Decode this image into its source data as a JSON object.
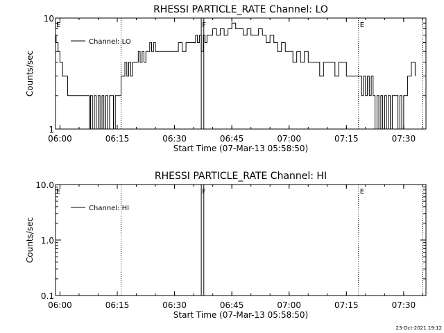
{
  "footer": {
    "timestamp": "23-Oct-2021 19:12"
  },
  "chart_data": [
    {
      "type": "line",
      "title": "RHESSI PARTICLE_RATE Channel: LO",
      "xlabel": "Start Time (07-Mar-13 05:58:50)",
      "ylabel": "Counts/sec",
      "yscale": "log",
      "xlim": [
        "05:58:50",
        "07:35:50"
      ],
      "ylim": [
        1,
        10
      ],
      "xticks": [
        "06:00",
        "06:15",
        "06:30",
        "06:45",
        "07:00",
        "07:15",
        "07:30"
      ],
      "yticks": [
        "1",
        "10"
      ],
      "legend": {
        "placement": "top-left",
        "entries": [
          "Channel: LO"
        ]
      },
      "event_lines": [
        {
          "time": "06:16:00",
          "style": "dotted",
          "label": ""
        },
        {
          "time": "06:37:00",
          "style": "solid",
          "label": "F"
        },
        {
          "time": "06:37:40",
          "style": "solid",
          "label": ""
        },
        {
          "time": "07:18:10",
          "style": "dotted",
          "label": "E"
        },
        {
          "time": "07:35:00",
          "style": "dotted",
          "label": ""
        }
      ],
      "start_label": "E",
      "series": [
        {
          "name": "Channel: LO",
          "x": [
            "05:58:50",
            "05:59:00",
            "05:59:30",
            "06:00:00",
            "06:00:40",
            "06:01:20",
            "06:02:00",
            "06:03:00",
            "06:04:00",
            "06:05:00",
            "06:06:00",
            "06:07:00",
            "06:07:40",
            "06:08:00",
            "06:08:30",
            "06:09:00",
            "06:09:30",
            "06:10:00",
            "06:10:30",
            "06:11:00",
            "06:11:30",
            "06:12:00",
            "06:12:30",
            "06:13:00",
            "06:13:30",
            "06:14:00",
            "06:14:30",
            "06:15:00",
            "06:15:30",
            "06:16:00",
            "06:16:30",
            "06:17:00",
            "06:17:30",
            "06:18:00",
            "06:18:30",
            "06:19:00",
            "06:19:30",
            "06:20:00",
            "06:20:30",
            "06:21:00",
            "06:21:30",
            "06:22:00",
            "06:22:30",
            "06:23:00",
            "06:23:30",
            "06:24:00",
            "06:24:30",
            "06:25:00",
            "06:26:00",
            "06:27:00",
            "06:28:00",
            "06:29:00",
            "06:30:00",
            "06:31:00",
            "06:32:00",
            "06:33:00",
            "06:34:00",
            "06:35:00",
            "06:35:30",
            "06:36:00",
            "06:36:30",
            "06:37:00",
            "06:37:30",
            "06:38:00",
            "06:38:30",
            "06:39:00",
            "06:40:00",
            "06:41:00",
            "06:42:00",
            "06:43:00",
            "06:44:00",
            "06:45:00",
            "06:46:00",
            "06:47:00",
            "06:48:00",
            "06:49:00",
            "06:50:00",
            "06:51:00",
            "06:52:00",
            "06:53:00",
            "06:54:00",
            "06:55:00",
            "06:56:00",
            "06:57:00",
            "06:58:00",
            "06:59:00",
            "07:00:00",
            "07:01:00",
            "07:02:00",
            "07:03:00",
            "07:04:00",
            "07:05:00",
            "07:06:00",
            "07:07:00",
            "07:08:00",
            "07:09:00",
            "07:10:00",
            "07:11:00",
            "07:12:00",
            "07:13:00",
            "07:14:00",
            "07:15:00",
            "07:16:00",
            "07:17:00",
            "07:18:00",
            "07:18:30",
            "07:19:00",
            "07:19:30",
            "07:20:00",
            "07:20:30",
            "07:21:00",
            "07:21:30",
            "07:22:00",
            "07:22:30",
            "07:23:00",
            "07:23:30",
            "07:24:00",
            "07:24:30",
            "07:25:00",
            "07:25:30",
            "07:26:00",
            "07:26:30",
            "07:27:00",
            "07:27:30",
            "07:28:00",
            "07:28:30",
            "07:29:00",
            "07:29:30",
            "07:30:00",
            "07:30:30",
            "07:31:00",
            "07:31:30",
            "07:32:00",
            "07:32:30",
            "07:33:00"
          ],
          "values": [
            7,
            6,
            5,
            4,
            3,
            3,
            2,
            2,
            2,
            2,
            2,
            2,
            1,
            2,
            1,
            2,
            1,
            2,
            1,
            2,
            1,
            2,
            1,
            2,
            2,
            1,
            2,
            2,
            2,
            3,
            3,
            4,
            3,
            4,
            3,
            4,
            4,
            4,
            5,
            4,
            5,
            4,
            5,
            5,
            6,
            5,
            6,
            5,
            5,
            5,
            5,
            5,
            5,
            6,
            5,
            6,
            6,
            6,
            7,
            6,
            7,
            5,
            7,
            6,
            7,
            7,
            8,
            7,
            8,
            7,
            8,
            9,
            8,
            8,
            7,
            8,
            7,
            7,
            8,
            7,
            6,
            7,
            6,
            5,
            6,
            5,
            5,
            4,
            5,
            4,
            5,
            4,
            4,
            4,
            3,
            4,
            4,
            4,
            3,
            4,
            4,
            3,
            3,
            3,
            3,
            3,
            2,
            3,
            2,
            3,
            2,
            3,
            2,
            1,
            2,
            1,
            2,
            1,
            2,
            1,
            2,
            1,
            2,
            2,
            2,
            1,
            2,
            1,
            2,
            2,
            3,
            3,
            4,
            4,
            3
          ]
        }
      ]
    },
    {
      "type": "line",
      "title": "RHESSI PARTICLE_RATE Channel: HI",
      "xlabel": "Start Time (07-Mar-13 05:58:50)",
      "ylabel": "Counts/sec",
      "yscale": "log",
      "xlim": [
        "05:58:50",
        "07:35:50"
      ],
      "ylim": [
        0.1,
        10
      ],
      "xticks": [
        "06:00",
        "06:15",
        "06:30",
        "06:45",
        "07:00",
        "07:15",
        "07:30"
      ],
      "yticks": [
        "0.1",
        "1.0",
        "10.0"
      ],
      "legend": {
        "placement": "top-left",
        "entries": [
          "Channel: HI"
        ]
      },
      "event_lines": [
        {
          "time": "06:16:00",
          "style": "dotted",
          "label": ""
        },
        {
          "time": "06:37:00",
          "style": "solid",
          "label": "F"
        },
        {
          "time": "06:37:40",
          "style": "solid",
          "label": ""
        },
        {
          "time": "07:18:10",
          "style": "dotted",
          "label": "E"
        },
        {
          "time": "07:35:00",
          "style": "dotted",
          "label": ""
        }
      ],
      "start_label": "E",
      "series": [
        {
          "name": "Channel: HI",
          "x": [],
          "values": []
        }
      ]
    }
  ]
}
